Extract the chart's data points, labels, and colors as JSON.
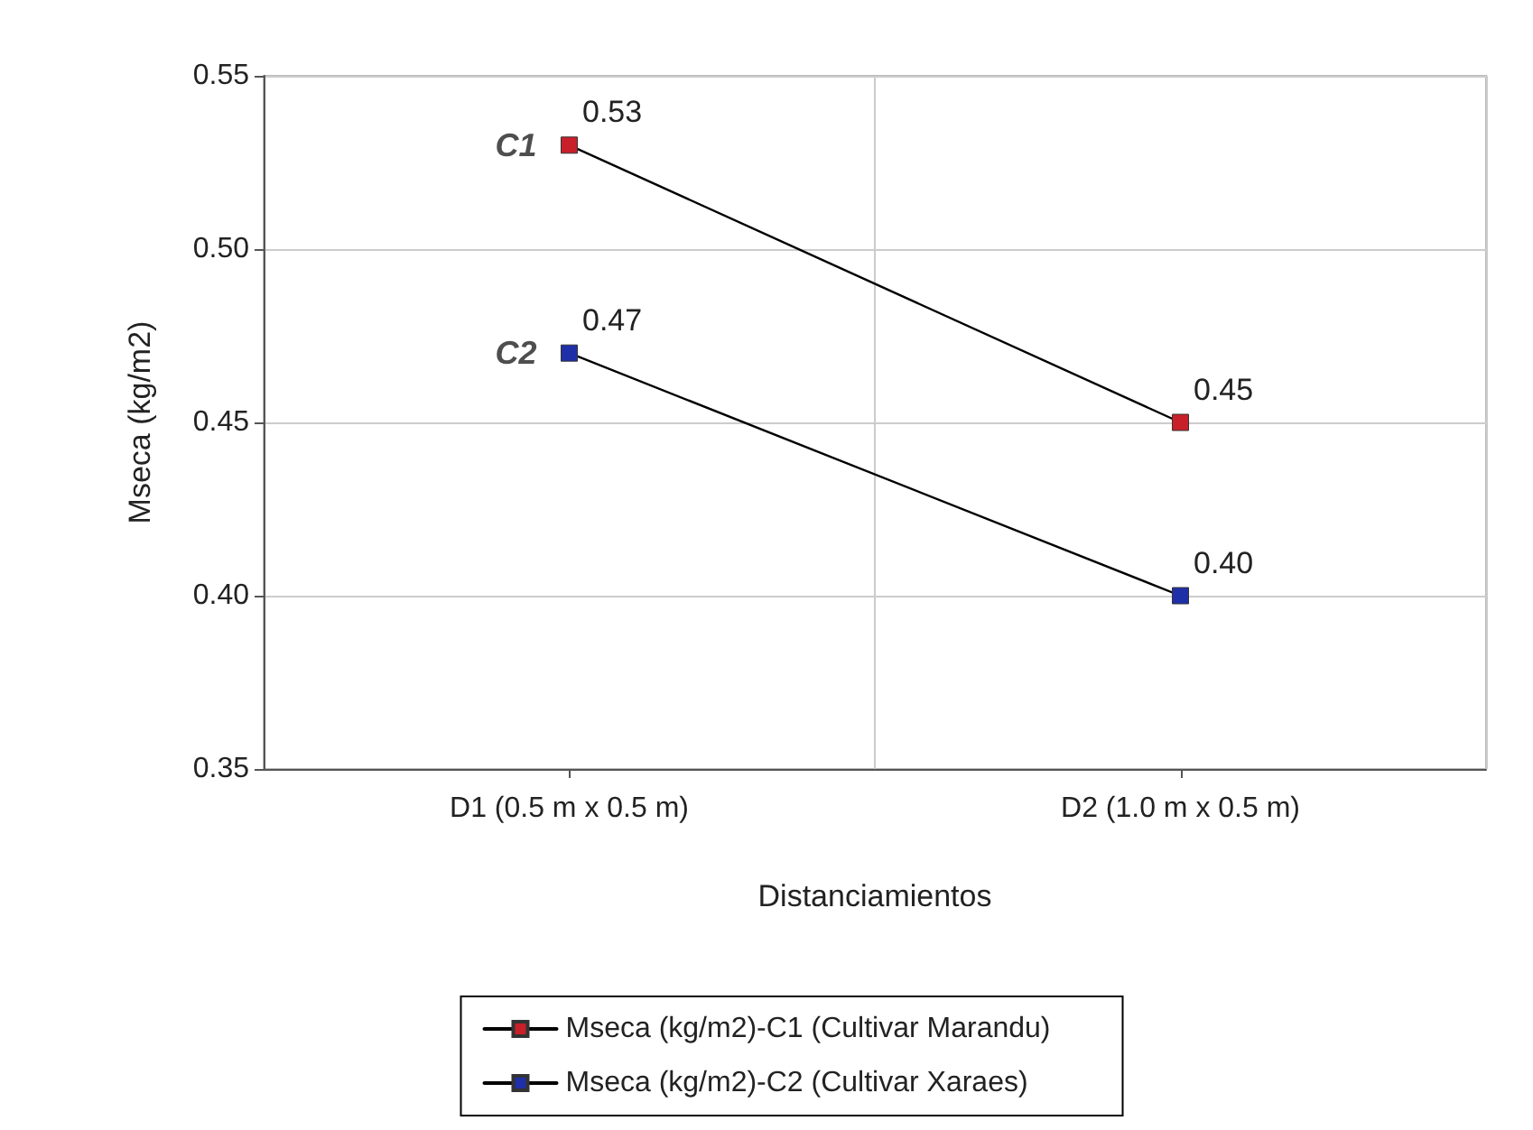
{
  "chart_data": {
    "type": "line",
    "xlabel": "Distanciamientos",
    "ylabel": "Mseca (kg/m2)",
    "categories": [
      "D1 (0.5 m x 0.5 m)",
      "D2 (1.0 m x 0.5 m)"
    ],
    "series": [
      {
        "name": "Mseca (kg/m2)-C1 (Cultivar Marandu)",
        "color": "#c8202a",
        "values": [
          0.53,
          0.45
        ],
        "value_labels": [
          "0.53",
          "0.45"
        ]
      },
      {
        "name": "Mseca (kg/m2)-C2 (Cultivar Xaraes)",
        "color": "#1f2fa8",
        "values": [
          0.47,
          0.4
        ],
        "value_labels": [
          "0.47",
          "0.40"
        ]
      }
    ],
    "ylim": [
      0.35,
      0.55
    ],
    "yticks": [
      "0.35",
      "0.40",
      "0.45",
      "0.50",
      "0.55"
    ],
    "annotations": [
      {
        "text": "C1",
        "x": "D1 (0.5 m x 0.5 m)",
        "y": 0.53
      },
      {
        "text": "C2",
        "x": "D1 (0.5 m x 0.5 m)",
        "y": 0.47
      }
    ],
    "grid": true,
    "legend": "bottom",
    "marker": "square",
    "line_style": "solid"
  }
}
